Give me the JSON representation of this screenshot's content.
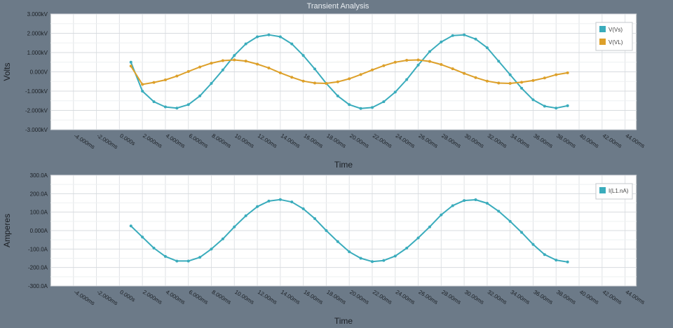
{
  "window": {
    "title": "Transient Analysis"
  },
  "colors": {
    "vs": "#3aacbc",
    "vl": "#dda02a",
    "il": "#3aacbc"
  },
  "chart_data": [
    {
      "type": "line",
      "name": "voltage",
      "xlabel": "Time",
      "ylabel": "Volts",
      "xlim": [
        -0.006,
        0.045
      ],
      "ylim": [
        -3.0,
        3.0
      ],
      "x_ticks": [
        "-4.000ms",
        "-2.000ms",
        "0.000s",
        "2.000ms",
        "4.000ms",
        "6.000ms",
        "8.000ms",
        "10.00ms",
        "12.00ms",
        "14.00ms",
        "16.00ms",
        "18.00ms",
        "20.00ms",
        "22.00ms",
        "24.00ms",
        "26.00ms",
        "28.00ms",
        "30.00ms",
        "32.00ms",
        "34.00ms",
        "36.00ms",
        "38.00ms",
        "40.00ms",
        "42.00ms",
        "44.00ms"
      ],
      "x_tick_values": [
        -0.004,
        -0.002,
        0,
        0.002,
        0.004,
        0.006,
        0.008,
        0.01,
        0.012,
        0.014,
        0.016,
        0.018,
        0.02,
        0.022,
        0.024,
        0.026,
        0.028,
        0.03,
        0.032,
        0.034,
        0.036,
        0.038,
        0.04,
        0.042,
        0.044
      ],
      "y_ticks": [
        "3.000kV",
        "2.000kV",
        "1.000kV",
        "0.000V",
        "-1.000kV",
        "-2.000kV",
        "-3.000kV"
      ],
      "y_tick_values": [
        3,
        2,
        1,
        0,
        -1,
        -2,
        -3
      ],
      "grid": true,
      "legend_position": "top-right",
      "series": [
        {
          "name": "V(Vs)",
          "x": [
            0.001,
            0.002,
            0.003,
            0.004,
            0.005,
            0.006,
            0.007,
            0.008,
            0.009,
            0.01,
            0.011,
            0.012,
            0.013,
            0.014,
            0.015,
            0.016,
            0.017,
            0.018,
            0.019,
            0.02,
            0.021,
            0.022,
            0.023,
            0.024,
            0.025,
            0.026,
            0.027,
            0.028,
            0.029,
            0.03,
            0.031,
            0.032,
            0.033,
            0.034,
            0.035,
            0.036,
            0.037,
            0.038,
            0.039
          ],
          "values": [
            0.5,
            -1.0,
            -1.55,
            -1.82,
            -1.88,
            -1.7,
            -1.25,
            -0.6,
            0.1,
            0.85,
            1.45,
            1.82,
            1.92,
            1.82,
            1.45,
            0.85,
            0.15,
            -0.6,
            -1.25,
            -1.7,
            -1.9,
            -1.85,
            -1.55,
            -1.05,
            -0.4,
            0.35,
            1.05,
            1.55,
            1.88,
            1.92,
            1.7,
            1.25,
            0.55,
            -0.15,
            -0.85,
            -1.45,
            -1.78,
            -1.88,
            -1.76
          ]
        },
        {
          "name": "V(VL)",
          "x": [
            0.001,
            0.002,
            0.003,
            0.004,
            0.005,
            0.006,
            0.007,
            0.008,
            0.009,
            0.01,
            0.011,
            0.012,
            0.013,
            0.014,
            0.015,
            0.016,
            0.017,
            0.018,
            0.019,
            0.02,
            0.021,
            0.022,
            0.023,
            0.024,
            0.025,
            0.026,
            0.027,
            0.028,
            0.029,
            0.03,
            0.031,
            0.032,
            0.033,
            0.034,
            0.035,
            0.036,
            0.037,
            0.038,
            0.039
          ],
          "values": [
            0.3,
            -0.65,
            -0.55,
            -0.42,
            -0.22,
            0.02,
            0.25,
            0.45,
            0.58,
            0.62,
            0.56,
            0.4,
            0.2,
            -0.05,
            -0.28,
            -0.48,
            -0.58,
            -0.6,
            -0.52,
            -0.36,
            -0.14,
            0.1,
            0.32,
            0.5,
            0.6,
            0.62,
            0.54,
            0.38,
            0.16,
            -0.08,
            -0.3,
            -0.48,
            -0.58,
            -0.6,
            -0.54,
            -0.45,
            -0.32,
            -0.15,
            -0.05
          ]
        }
      ]
    },
    {
      "type": "line",
      "name": "current",
      "xlabel": "Time",
      "ylabel": "Amperes",
      "xlim": [
        -0.006,
        0.045
      ],
      "ylim": [
        -300,
        300
      ],
      "x_ticks": [
        "-4.000ms",
        "-2.000ms",
        "0.000s",
        "2.000ms",
        "4.000ms",
        "6.000ms",
        "8.000ms",
        "10.00ms",
        "12.00ms",
        "14.00ms",
        "16.00ms",
        "18.00ms",
        "20.00ms",
        "22.00ms",
        "24.00ms",
        "26.00ms",
        "28.00ms",
        "30.00ms",
        "32.00ms",
        "34.00ms",
        "36.00ms",
        "38.00ms",
        "40.00ms",
        "42.00ms",
        "44.00ms"
      ],
      "x_tick_values": [
        -0.004,
        -0.002,
        0,
        0.002,
        0.004,
        0.006,
        0.008,
        0.01,
        0.012,
        0.014,
        0.016,
        0.018,
        0.02,
        0.022,
        0.024,
        0.026,
        0.028,
        0.03,
        0.032,
        0.034,
        0.036,
        0.038,
        0.04,
        0.042,
        0.044
      ],
      "y_ticks": [
        "300.0A",
        "200.0A",
        "100.0A",
        "0.000A",
        "-100.0A",
        "-200.0A",
        "-300.0A"
      ],
      "y_tick_values": [
        300,
        200,
        100,
        0,
        -100,
        -200,
        -300
      ],
      "grid": true,
      "legend_position": "top-right",
      "series": [
        {
          "name": "I(L1.nA)",
          "x": [
            0.001,
            0.002,
            0.003,
            0.004,
            0.005,
            0.006,
            0.007,
            0.008,
            0.009,
            0.01,
            0.011,
            0.012,
            0.013,
            0.014,
            0.015,
            0.016,
            0.017,
            0.018,
            0.019,
            0.02,
            0.021,
            0.022,
            0.023,
            0.024,
            0.025,
            0.026,
            0.027,
            0.028,
            0.029,
            0.03,
            0.031,
            0.032,
            0.033,
            0.034,
            0.035,
            0.036,
            0.037,
            0.038,
            0.039
          ],
          "values": [
            25,
            -35,
            -95,
            -140,
            -165,
            -165,
            -145,
            -100,
            -45,
            20,
            80,
            130,
            160,
            168,
            155,
            118,
            65,
            0,
            -60,
            -115,
            -150,
            -168,
            -162,
            -138,
            -95,
            -40,
            20,
            85,
            135,
            163,
            167,
            148,
            105,
            50,
            -10,
            -75,
            -130,
            -160,
            -170
          ]
        }
      ]
    }
  ]
}
